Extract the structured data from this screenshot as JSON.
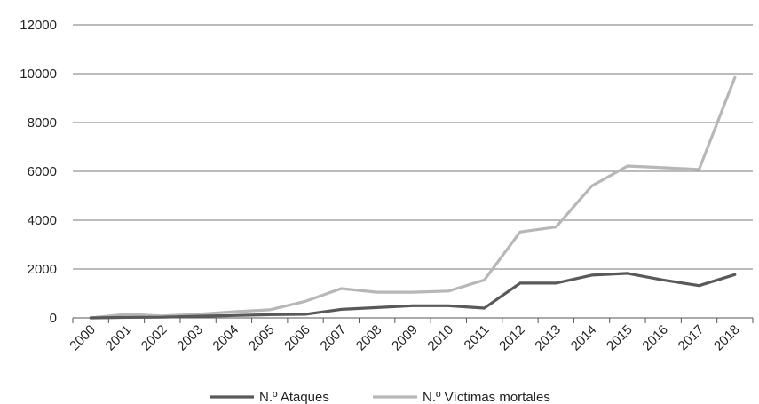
{
  "chart_data": {
    "type": "line",
    "title": "",
    "xlabel": "",
    "ylabel": "",
    "x": [
      "2000",
      "2001",
      "2002",
      "2003",
      "2004",
      "2005",
      "2006",
      "2007",
      "2008",
      "2009",
      "2010",
      "2011",
      "2012",
      "2013",
      "2014",
      "2015",
      "2016",
      "2017",
      "2018"
    ],
    "ylim": [
      0,
      12000
    ],
    "yticks": [
      0,
      2000,
      4000,
      6000,
      8000,
      10000,
      12000
    ],
    "grid": true,
    "legend_position": "bottom",
    "series": [
      {
        "name": "N.º Ataques",
        "color": "#595959",
        "values": [
          0,
          20,
          30,
          70,
          100,
          130,
          150,
          350,
          420,
          500,
          500,
          400,
          1420,
          1420,
          1750,
          1820,
          1550,
          1320,
          1770
        ]
      },
      {
        "name": "N.º Víctimas mortales",
        "color": "#b7b7b7",
        "values": [
          0,
          150,
          80,
          150,
          250,
          330,
          680,
          1200,
          1050,
          1050,
          1100,
          1550,
          3520,
          3720,
          5400,
          6220,
          6150,
          6080,
          9840
        ]
      }
    ]
  }
}
